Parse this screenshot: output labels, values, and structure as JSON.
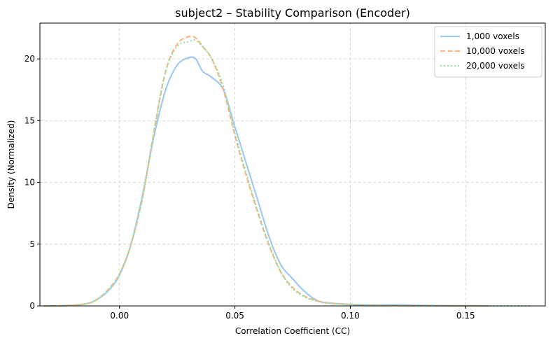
{
  "chart_data": {
    "type": "line",
    "title": "subject2 – Stability Comparison (Encoder)",
    "xlabel": "Correlation Coefficient (CC)",
    "ylabel": "Density (Normalized)",
    "xlim": [
      -0.0345,
      0.1845
    ],
    "ylim": [
      0,
      22.9
    ],
    "xticks": [
      0.0,
      0.05,
      0.1,
      0.15
    ],
    "xtick_labels": [
      "0.00",
      "0.05",
      "0.10",
      "0.15"
    ],
    "yticks": [
      0,
      5,
      10,
      15,
      20
    ],
    "ytick_labels": [
      "0",
      "5",
      "10",
      "15",
      "20"
    ],
    "grid": true,
    "legend_position": "top-right",
    "series": [
      {
        "name": "1,000 voxels",
        "color": "#a1c9f4",
        "style": "solid",
        "x": [
          -0.033,
          -0.025,
          -0.015,
          -0.01,
          -0.005,
          0.0,
          0.005,
          0.01,
          0.015,
          0.02,
          0.025,
          0.03,
          0.033,
          0.036,
          0.04,
          0.045,
          0.05,
          0.055,
          0.06,
          0.065,
          0.07,
          0.075,
          0.08,
          0.085,
          0.09,
          0.1,
          0.11,
          0.12,
          0.13,
          0.14,
          0.15,
          0.16
        ],
        "y": [
          0.0,
          0.01,
          0.15,
          0.5,
          1.2,
          2.5,
          5.0,
          9.0,
          13.8,
          17.5,
          19.5,
          20.1,
          20.0,
          19.0,
          18.5,
          17.5,
          14.5,
          11.5,
          8.5,
          5.5,
          3.3,
          2.2,
          1.2,
          0.5,
          0.25,
          0.12,
          0.08,
          0.09,
          0.05,
          0.02,
          0.01,
          0.0
        ]
      },
      {
        "name": "10,000 voxels",
        "color": "#ffb482",
        "style": "dashed",
        "x": [
          -0.033,
          -0.025,
          -0.015,
          -0.01,
          -0.005,
          0.0,
          0.005,
          0.01,
          0.015,
          0.02,
          0.025,
          0.03,
          0.033,
          0.036,
          0.04,
          0.045,
          0.05,
          0.055,
          0.06,
          0.065,
          0.07,
          0.075,
          0.08,
          0.085,
          0.09,
          0.1,
          0.11,
          0.12,
          0.13,
          0.14,
          0.15,
          0.16
        ],
        "y": [
          0.0,
          0.01,
          0.15,
          0.5,
          1.3,
          2.6,
          5.0,
          8.8,
          14.2,
          19.0,
          21.2,
          21.8,
          21.7,
          21.0,
          20.0,
          17.5,
          13.8,
          10.5,
          7.5,
          4.8,
          2.7,
          1.5,
          0.8,
          0.45,
          0.25,
          0.12,
          0.05,
          0.03,
          0.02,
          0.01,
          0.0,
          0.0
        ]
      },
      {
        "name": "20,000 voxels",
        "color": "#8de5a1",
        "style": "dotted",
        "x": [
          -0.033,
          -0.025,
          -0.015,
          -0.01,
          -0.005,
          0.0,
          0.005,
          0.01,
          0.015,
          0.02,
          0.025,
          0.03,
          0.033,
          0.036,
          0.04,
          0.045,
          0.05,
          0.055,
          0.06,
          0.065,
          0.07,
          0.075,
          0.08,
          0.085,
          0.09,
          0.1,
          0.11,
          0.12,
          0.13,
          0.14,
          0.15,
          0.16,
          0.17,
          0.178
        ],
        "y": [
          0.0,
          0.01,
          0.15,
          0.5,
          1.3,
          2.6,
          5.0,
          8.8,
          14.2,
          19.0,
          21.0,
          21.4,
          21.5,
          21.0,
          20.0,
          17.8,
          14.0,
          10.7,
          7.6,
          4.9,
          2.7,
          1.4,
          0.75,
          0.4,
          0.22,
          0.1,
          0.05,
          0.03,
          0.02,
          0.01,
          0.0,
          0.0,
          0.0,
          0.0
        ]
      }
    ]
  }
}
